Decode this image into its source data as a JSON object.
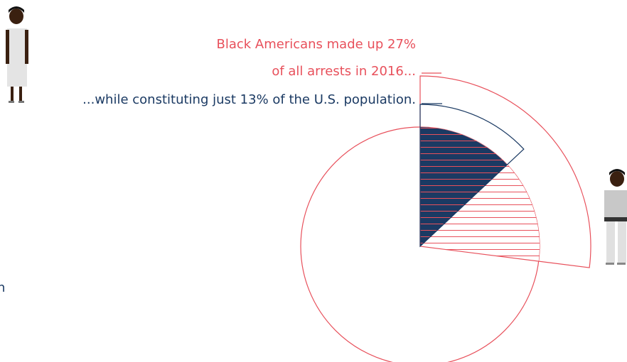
{
  "chart_data": {
    "type": "pie",
    "annotations": [
      "Black Americans made up 27%",
      "of all arrests in 2016...",
      "...while constituting just 13% of the U.S. population.",
      "n"
    ],
    "values": [
      27,
      13
    ],
    "colors": [
      "#e8505b",
      "#1b3a63"
    ]
  }
}
